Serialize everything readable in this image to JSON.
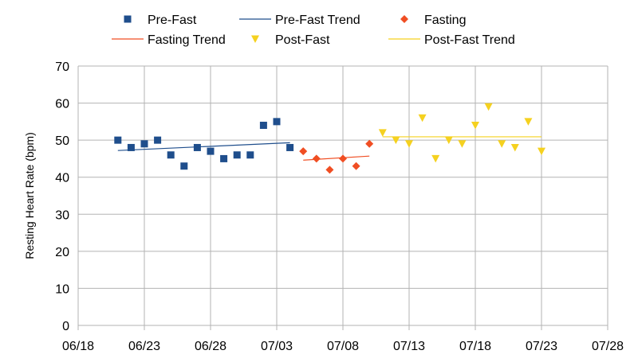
{
  "chart_data": {
    "type": "scatter",
    "title": "",
    "xlabel": "",
    "ylabel": "Resting Heart Rate (bpm)",
    "ylim": [
      0,
      70
    ],
    "yticks": [
      0,
      10,
      20,
      30,
      40,
      50,
      60,
      70
    ],
    "xlim": [
      "06/18",
      "07/28"
    ],
    "xticks": [
      "06/18",
      "06/23",
      "06/28",
      "07/03",
      "07/08",
      "07/13",
      "07/18",
      "07/23",
      "07/28"
    ],
    "grid": true,
    "legend_position": "top",
    "series": [
      {
        "name": "Pre-Fast",
        "kind": "points",
        "marker": "square",
        "color": "#1f4e8c",
        "points": [
          {
            "x": "06/21",
            "y": 50
          },
          {
            "x": "06/22",
            "y": 48
          },
          {
            "x": "06/23",
            "y": 49
          },
          {
            "x": "06/24",
            "y": 50
          },
          {
            "x": "06/25",
            "y": 46
          },
          {
            "x": "06/26",
            "y": 43
          },
          {
            "x": "06/27",
            "y": 48
          },
          {
            "x": "06/28",
            "y": 47
          },
          {
            "x": "06/29",
            "y": 45
          },
          {
            "x": "06/30",
            "y": 46
          },
          {
            "x": "07/01",
            "y": 46
          },
          {
            "x": "07/02",
            "y": 54
          },
          {
            "x": "07/03",
            "y": 55
          },
          {
            "x": "07/04",
            "y": 48
          }
        ]
      },
      {
        "name": "Pre-Fast Trend",
        "kind": "line",
        "color": "#1f4e8c",
        "points": [
          {
            "x": "06/21",
            "y": 47.2
          },
          {
            "x": "07/04",
            "y": 49.3
          }
        ]
      },
      {
        "name": "Fasting",
        "kind": "points",
        "marker": "diamond",
        "color": "#f04e23",
        "points": [
          {
            "x": "07/05",
            "y": 47
          },
          {
            "x": "07/06",
            "y": 45
          },
          {
            "x": "07/07",
            "y": 42
          },
          {
            "x": "07/08",
            "y": 45
          },
          {
            "x": "07/09",
            "y": 43
          },
          {
            "x": "07/10",
            "y": 49
          }
        ]
      },
      {
        "name": "Fasting Trend",
        "kind": "line",
        "color": "#f04e23",
        "points": [
          {
            "x": "07/05",
            "y": 44.6
          },
          {
            "x": "07/10",
            "y": 45.7
          }
        ]
      },
      {
        "name": "Post-Fast",
        "kind": "points",
        "marker": "triangle-down",
        "color": "#f5d11f",
        "points": [
          {
            "x": "07/11",
            "y": 52
          },
          {
            "x": "07/12",
            "y": 50
          },
          {
            "x": "07/13",
            "y": 49
          },
          {
            "x": "07/14",
            "y": 56
          },
          {
            "x": "07/15",
            "y": 45
          },
          {
            "x": "07/16",
            "y": 50
          },
          {
            "x": "07/17",
            "y": 49
          },
          {
            "x": "07/18",
            "y": 54
          },
          {
            "x": "07/19",
            "y": 59
          },
          {
            "x": "07/20",
            "y": 49
          },
          {
            "x": "07/21",
            "y": 48
          },
          {
            "x": "07/22",
            "y": 55
          },
          {
            "x": "07/23",
            "y": 47
          }
        ]
      },
      {
        "name": "Post-Fast Trend",
        "kind": "line",
        "color": "#f5d11f",
        "points": [
          {
            "x": "07/11",
            "y": 50.9
          },
          {
            "x": "07/23",
            "y": 50.9
          }
        ]
      }
    ]
  }
}
